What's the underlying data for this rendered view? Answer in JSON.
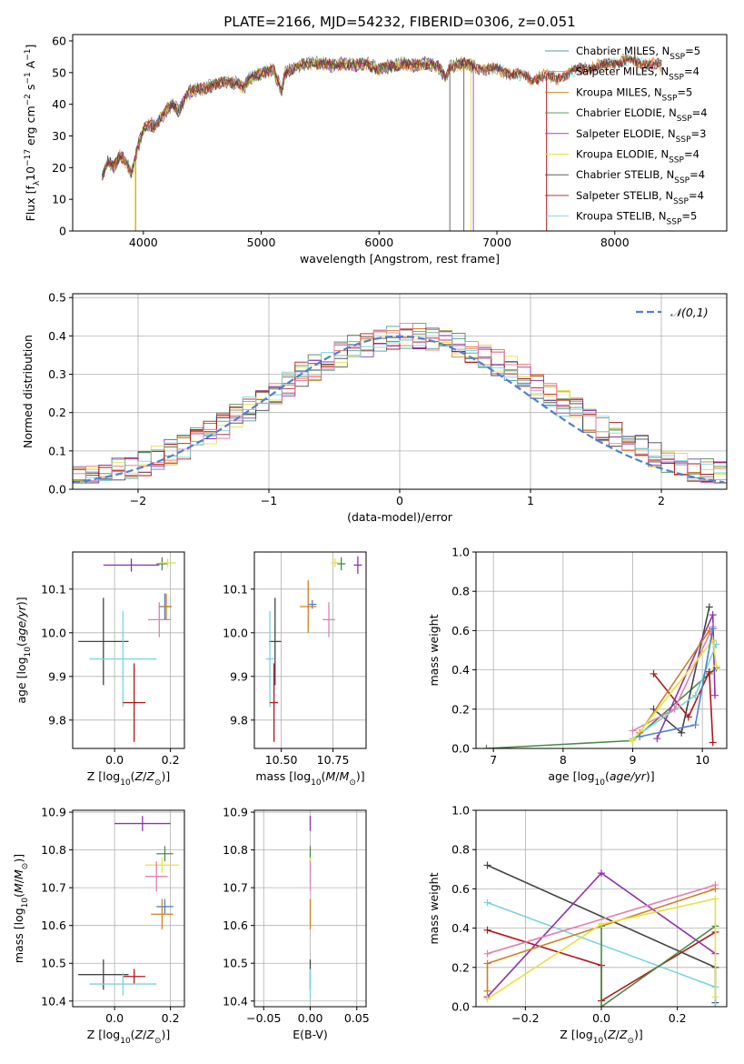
{
  "figure": {
    "title": "PLATE=2166, MJD=54232, FIBERID=0306, z=0.051"
  },
  "colors": {
    "Chabrier MILES": "#4c9a9a",
    "Salpeter MILES": "#f07860",
    "Kroupa MILES": "#d08020",
    "Chabrier ELODIE": "#4a8a4a",
    "Salpeter ELODIE": "#9030b0",
    "Kroupa ELODIE": "#e8e040",
    "Chabrier STELIB": "#444444",
    "Salpeter STELIB": "#b01818",
    "Kroupa STELIB": "#78d4dc",
    "Pink": "#e080b0",
    "Blue2": "#5080d0"
  },
  "chart_data": [
    {
      "id": "spectrum",
      "type": "line",
      "title": "PLATE=2166, MJD=54232, FIBERID=0306, z=0.051",
      "xlabel": "wavelength [Angstrom, rest frame]",
      "ylabel": "Flux [f_λ 10^-17 erg cm^-2 s^-1 A^-1]",
      "xlim": [
        3400,
        8950
      ],
      "ylim": [
        0,
        62
      ],
      "xticks": [
        4000,
        5000,
        6000,
        7000,
        8000
      ],
      "yticks": [
        0,
        10,
        20,
        30,
        40,
        50,
        60
      ],
      "legend_position": "top-right",
      "legend": [
        "Chabrier MILES, N_SSP=5",
        "Salpeter MILES, N_SSP=4",
        "Kroupa MILES, N_SSP=5",
        "Chabrier ELODIE, N_SSP=4",
        "Salpeter ELODIE, N_SSP=3",
        "Kroupa ELODIE, N_SSP=4",
        "Chabrier STELIB, N_SSP=4",
        "Salpeter STELIB, N_SSP=4",
        "Kroupa STELIB, N_SSP=5"
      ],
      "series_shape": {
        "x": [
          3650,
          3700,
          3750,
          3800,
          3850,
          3900,
          3950,
          4000,
          4050,
          4100,
          4150,
          4200,
          4250,
          4300,
          4350,
          4400,
          4500,
          4600,
          4700,
          4800,
          4850,
          4900,
          5000,
          5100,
          5175,
          5200,
          5300,
          5400,
          5500,
          5600,
          5700,
          5800,
          5900,
          6000,
          6100,
          6200,
          6300,
          6400,
          6500,
          6563,
          6600,
          6700,
          6800,
          6900,
          7000,
          7100,
          7200,
          7300,
          7400,
          7500,
          7600,
          7700,
          7800,
          7900,
          8000,
          8100,
          8200,
          8300,
          8400
        ],
        "y": [
          17,
          22,
          20,
          24,
          22,
          18,
          26,
          32,
          34,
          33,
          36,
          38,
          40,
          38,
          42,
          44,
          45,
          46,
          47,
          47,
          45,
          48,
          50,
          51,
          44,
          50,
          52,
          53,
          53,
          52,
          53,
          52,
          53,
          51,
          52,
          53,
          52,
          53,
          52,
          48,
          52,
          53,
          52,
          51,
          51,
          50,
          49,
          48,
          49,
          48,
          50,
          51,
          52,
          52,
          53,
          54,
          53,
          53,
          52
        ]
      }
    },
    {
      "id": "residuals",
      "type": "histogram",
      "xlabel": "(data-model)/error",
      "ylabel": "Normed distribution",
      "xlim": [
        -2.5,
        2.5
      ],
      "ylim": [
        0,
        0.51
      ],
      "xticks": [
        -2,
        -1,
        0,
        1,
        2
      ],
      "yticks": [
        0.0,
        0.1,
        0.2,
        0.3,
        0.4,
        0.5
      ],
      "legend": [
        "𝒩(0,1)"
      ],
      "legend_position": "top-right",
      "bin_width": 0.1
    },
    {
      "id": "age-vs-Z",
      "type": "scatter",
      "xlabel": "Z [log10(Z/Z⊙)]",
      "ylabel": "age [log10(age/yr)]",
      "xlim": [
        -0.15,
        0.25
      ],
      "ylim": [
        9.735,
        10.185
      ],
      "xticks": [
        0.0,
        0.2
      ],
      "yticks": [
        9.8,
        9.9,
        10.0,
        10.1
      ],
      "points": [
        {
          "series": "Chabrier STELIB",
          "x": -0.04,
          "y": 9.98,
          "xerr": 0.09,
          "yerr": 0.1
        },
        {
          "series": "Kroupa STELIB",
          "x": 0.03,
          "y": 9.94,
          "xerr": 0.12,
          "yerr": 0.11
        },
        {
          "series": "Salpeter STELIB",
          "x": 0.07,
          "y": 9.84,
          "xerr": 0.04,
          "yerr": 0.09
        },
        {
          "series": "Pink",
          "x": 0.16,
          "y": 10.03,
          "xerr": 0.04,
          "yerr": 0.04
        },
        {
          "series": "Blue2",
          "x": 0.18,
          "y": 10.06,
          "xerr": 0.02,
          "yerr": 0.03
        },
        {
          "series": "Kroupa MILES",
          "x": 0.185,
          "y": 10.06,
          "xerr": 0.02,
          "yerr": 0.03
        },
        {
          "series": "Salpeter ELODIE",
          "x": 0.06,
          "y": 10.155,
          "xerr": 0.1,
          "yerr": 0.015
        },
        {
          "series": "Chabrier ELODIE",
          "x": 0.17,
          "y": 10.158,
          "xerr": 0.02,
          "yerr": 0.015
        },
        {
          "series": "Kroupa ELODIE",
          "x": 0.19,
          "y": 10.16,
          "xerr": 0.03,
          "yerr": 0.01
        }
      ]
    },
    {
      "id": "age-vs-mass",
      "type": "scatter",
      "xlabel": "mass [log10(M/M⊙)]",
      "ylabel": "",
      "xlim": [
        10.37,
        10.91
      ],
      "ylim": [
        9.735,
        10.185
      ],
      "xticks": [
        10.5,
        10.75
      ],
      "yticks": [
        9.8,
        9.9,
        10.0,
        10.1
      ],
      "points": [
        {
          "series": "Chabrier STELIB",
          "x": 10.47,
          "y": 9.98,
          "xerr": 0.03,
          "yerr": 0.1
        },
        {
          "series": "Kroupa STELIB",
          "x": 10.445,
          "y": 9.94,
          "xerr": 0.02,
          "yerr": 0.11
        },
        {
          "series": "Salpeter STELIB",
          "x": 10.465,
          "y": 9.84,
          "xerr": 0.02,
          "yerr": 0.09
        },
        {
          "series": "Pink",
          "x": 10.73,
          "y": 10.03,
          "xerr": 0.03,
          "yerr": 0.04
        },
        {
          "series": "Blue2",
          "x": 10.65,
          "y": 10.065,
          "xerr": 0.02,
          "yerr": 0.01
        },
        {
          "series": "Kroupa MILES",
          "x": 10.63,
          "y": 10.06,
          "xerr": 0.04,
          "yerr": 0.06
        },
        {
          "series": "Salpeter ELODIE",
          "x": 10.87,
          "y": 10.155,
          "xerr": 0.02,
          "yerr": 0.02
        },
        {
          "series": "Chabrier ELODIE",
          "x": 10.79,
          "y": 10.158,
          "xerr": 0.02,
          "yerr": 0.015
        },
        {
          "series": "Kroupa ELODIE",
          "x": 10.76,
          "y": 10.16,
          "xerr": 0.02,
          "yerr": 0.01
        }
      ]
    },
    {
      "id": "massweight-vs-age",
      "type": "line",
      "xlabel": "age [log10(age/yr)]",
      "ylabel": "mass weight",
      "xlim": [
        6.75,
        10.35
      ],
      "ylim": [
        0,
        1
      ],
      "xticks": [
        7,
        8,
        9,
        10
      ],
      "yticks": [
        0.0,
        0.2,
        0.4,
        0.6,
        0.8,
        1.0
      ],
      "series": [
        {
          "series": "Chabrier ELODIE",
          "x": [
            6.9,
            9.0,
            10.1,
            10.2
          ],
          "y": [
            0.0,
            0.04,
            0.38,
            0.41
          ]
        },
        {
          "series": "Chabrier STELIB",
          "x": [
            9.3,
            9.7,
            10.1
          ],
          "y": [
            0.2,
            0.08,
            0.72
          ]
        },
        {
          "series": "Salpeter STELIB",
          "x": [
            9.3,
            9.8,
            10.1,
            10.15
          ],
          "y": [
            0.38,
            0.16,
            0.39,
            0.03
          ]
        },
        {
          "series": "Salpeter ELODIE",
          "x": [
            9.35,
            10.15,
            10.18
          ],
          "y": [
            0.05,
            0.68,
            0.27
          ]
        },
        {
          "series": "Kroupa STELIB",
          "x": [
            9.0,
            9.9,
            10.2
          ],
          "y": [
            0.05,
            0.27,
            0.53
          ]
        },
        {
          "series": "Kroupa MILES",
          "x": [
            9.1,
            10.1,
            10.15
          ],
          "y": [
            0.08,
            0.6,
            0.55
          ]
        },
        {
          "series": "Pink",
          "x": [
            9.0,
            9.6,
            10.15
          ],
          "y": [
            0.09,
            0.2,
            0.62
          ]
        },
        {
          "series": "Kroupa ELODIE",
          "x": [
            9.0,
            10.15,
            10.2
          ],
          "y": [
            0.04,
            0.55,
            0.42
          ]
        },
        {
          "series": "Blue2",
          "x": [
            9.1,
            9.9,
            10.15
          ],
          "y": [
            0.06,
            0.12,
            0.61
          ]
        }
      ]
    },
    {
      "id": "mass-vs-Z",
      "type": "scatter",
      "xlabel": "Z [log10(Z/Z⊙)]",
      "ylabel": "mass [log10(M/M⊙)]",
      "xlim": [
        -0.15,
        0.25
      ],
      "ylim": [
        10.385,
        10.905
      ],
      "xticks": [
        0.0,
        0.2
      ],
      "yticks": [
        10.4,
        10.5,
        10.6,
        10.7,
        10.8,
        10.9
      ],
      "points": [
        {
          "series": "Salpeter ELODIE",
          "x": 0.1,
          "y": 10.87,
          "xerr": 0.1,
          "yerr": 0.02
        },
        {
          "series": "Chabrier ELODIE",
          "x": 0.18,
          "y": 10.79,
          "xerr": 0.03,
          "yerr": 0.02
        },
        {
          "series": "Kroupa ELODIE",
          "x": 0.17,
          "y": 10.76,
          "xerr": 0.06,
          "yerr": 0.02
        },
        {
          "series": "Pink",
          "x": 0.15,
          "y": 10.73,
          "xerr": 0.04,
          "yerr": 0.04
        },
        {
          "series": "Blue2",
          "x": 0.18,
          "y": 10.65,
          "xerr": 0.03,
          "yerr": 0.02
        },
        {
          "series": "Kroupa MILES",
          "x": 0.17,
          "y": 10.63,
          "xerr": 0.04,
          "yerr": 0.04
        },
        {
          "series": "Chabrier STELIB",
          "x": -0.04,
          "y": 10.47,
          "xerr": 0.09,
          "yerr": 0.04
        },
        {
          "series": "Salpeter STELIB",
          "x": 0.07,
          "y": 10.465,
          "xerr": 0.04,
          "yerr": 0.02
        },
        {
          "series": "Kroupa STELIB",
          "x": 0.03,
          "y": 10.445,
          "xerr": 0.12,
          "yerr": 0.03
        }
      ]
    },
    {
      "id": "mass-vs-ebv",
      "type": "scatter",
      "xlabel": "E(B-V)",
      "ylabel": "",
      "xlim": [
        -0.06,
        0.06
      ],
      "ylim": [
        10.385,
        10.905
      ],
      "xticks": [
        -0.05,
        0.0,
        0.05
      ],
      "yticks": [
        10.4,
        10.5,
        10.6,
        10.7,
        10.8,
        10.9
      ],
      "points": [
        {
          "series": "Salpeter ELODIE",
          "x": 0.0,
          "y": 10.87,
          "xerr": 0,
          "yerr": 0.02
        },
        {
          "series": "Chabrier ELODIE",
          "x": 0.0,
          "y": 10.79,
          "xerr": 0,
          "yerr": 0.02
        },
        {
          "series": "Kroupa ELODIE",
          "x": 0.0,
          "y": 10.76,
          "xerr": 0,
          "yerr": 0.02
        },
        {
          "series": "Pink",
          "x": 0.0,
          "y": 10.73,
          "xerr": 0,
          "yerr": 0.04
        },
        {
          "series": "Kroupa MILES",
          "x": 0.0,
          "y": 10.63,
          "xerr": 0,
          "yerr": 0.04
        },
        {
          "series": "Chabrier STELIB",
          "x": 0.0,
          "y": 10.47,
          "xerr": 0,
          "yerr": 0.04
        },
        {
          "series": "Kroupa STELIB",
          "x": 0.0,
          "y": 10.445,
          "xerr": 0,
          "yerr": 0.04
        }
      ]
    },
    {
      "id": "massweight-vs-Z",
      "type": "line",
      "xlabel": "Z [log10(Z/Z⊙)]",
      "ylabel": "mass weight",
      "xlim": [
        -0.33,
        0.33
      ],
      "ylim": [
        0,
        1
      ],
      "xticks": [
        -0.2,
        0.0,
        0.2
      ],
      "yticks": [
        0.0,
        0.2,
        0.4,
        0.6,
        0.8,
        1.0
      ],
      "series": [
        {
          "series": "Chabrier STELIB",
          "x": [
            -0.3,
            0.3,
            0.3
          ],
          "y": [
            0.72,
            0.2,
            0.02
          ]
        },
        {
          "series": "Kroupa STELIB",
          "x": [
            -0.3,
            0.3,
            0.3
          ],
          "y": [
            0.53,
            0.1,
            0.0
          ]
        },
        {
          "series": "Salpeter STELIB",
          "x": [
            -0.3,
            0.0,
            0.0,
            0.3
          ],
          "y": [
            0.39,
            0.21,
            0.03,
            0.38
          ]
        },
        {
          "series": "Salpeter ELODIE",
          "x": [
            -0.3,
            0.0,
            0.3
          ],
          "y": [
            0.05,
            0.68,
            0.27
          ]
        },
        {
          "series": "Pink",
          "x": [
            -0.3,
            0.3
          ],
          "y": [
            0.27,
            0.62
          ]
        },
        {
          "series": "Kroupa MILES",
          "x": [
            -0.3,
            -0.3,
            0.3
          ],
          "y": [
            0.08,
            0.22,
            0.6
          ]
        },
        {
          "series": "Chabrier ELODIE",
          "x": [
            0.0,
            0.0,
            0.3
          ],
          "y": [
            0.41,
            0.0,
            0.41
          ]
        },
        {
          "series": "Kroupa ELODIE",
          "x": [
            -0.3,
            0.0,
            0.3,
            0.3
          ],
          "y": [
            0.04,
            0.42,
            0.55,
            0.05
          ]
        }
      ]
    }
  ]
}
